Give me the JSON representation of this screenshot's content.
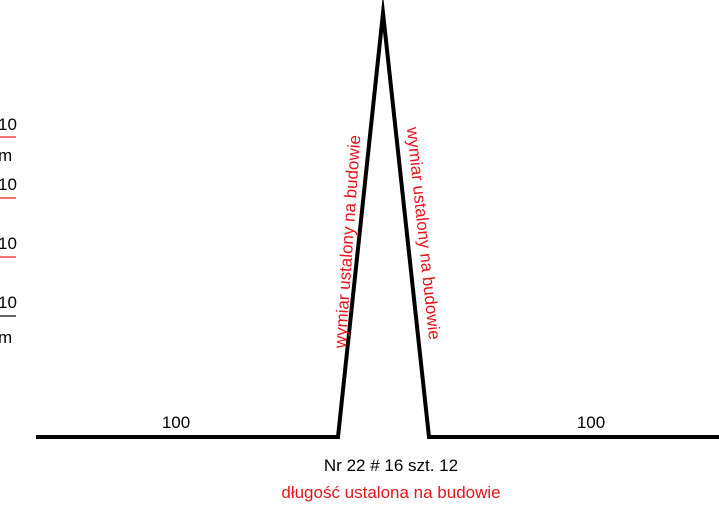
{
  "colors": {
    "line": "#000000",
    "annotation": "#e8141c"
  },
  "left_margin": {
    "marks": [
      {
        "text": "10",
        "color": "#000000"
      },
      {
        "text": "m",
        "color": "#000000"
      },
      {
        "text": "10",
        "color": "#000000"
      },
      {
        "text": "10",
        "color": "#000000"
      },
      {
        "text": "10",
        "color": "#000000"
      },
      {
        "text": "m",
        "color": "#000000"
      }
    ]
  },
  "dimensions": {
    "left_segment": "100",
    "right_segment": "100",
    "left_leg": "wymiar ustalony na budowie",
    "right_leg": "wymiar ustalony na budowie"
  },
  "bar": {
    "spec": "Nr 22 # 16 szt. 12",
    "length_note": "długość ustalona na budowie"
  }
}
